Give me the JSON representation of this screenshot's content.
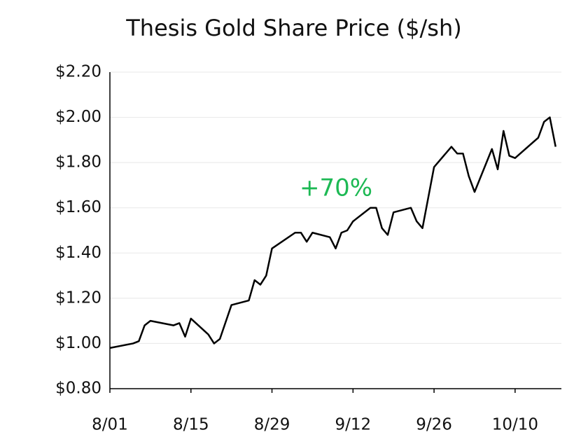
{
  "chart_data": {
    "type": "line",
    "title": "Thesis Gold Share Price ($/sh)",
    "annotation": "+70%",
    "annotation_color": "#1db954",
    "x": [
      "8/01",
      "8/05",
      "8/06",
      "8/07",
      "8/08",
      "8/12",
      "8/13",
      "8/14",
      "8/15",
      "8/18",
      "8/19",
      "8/20",
      "8/22",
      "8/25",
      "8/26",
      "8/27",
      "8/28",
      "8/29",
      "9/02",
      "9/03",
      "9/04",
      "9/05",
      "9/08",
      "9/09",
      "9/10",
      "9/11",
      "9/12",
      "9/15",
      "9/16",
      "9/17",
      "9/18",
      "9/19",
      "9/22",
      "9/23",
      "9/24",
      "9/26",
      "9/29",
      "9/30",
      "10/01",
      "10/02",
      "10/03",
      "10/06",
      "10/07",
      "10/08",
      "10/09",
      "10/10",
      "10/14",
      "10/15",
      "10/16",
      "10/17"
    ],
    "series": [
      {
        "name": "Share price",
        "color": "#000000",
        "values": [
          0.98,
          1.0,
          1.01,
          1.08,
          1.1,
          1.08,
          1.09,
          1.03,
          1.11,
          1.04,
          1.0,
          1.02,
          1.17,
          1.19,
          1.28,
          1.26,
          1.3,
          1.42,
          1.49,
          1.49,
          1.45,
          1.49,
          1.47,
          1.42,
          1.49,
          1.5,
          1.54,
          1.6,
          1.6,
          1.51,
          1.48,
          1.58,
          1.6,
          1.54,
          1.51,
          1.78,
          1.87,
          1.84,
          1.84,
          1.74,
          1.67,
          1.86,
          1.77,
          1.94,
          1.83,
          1.82,
          1.91,
          1.98,
          2.0,
          1.87
        ]
      }
    ],
    "xlim": [
      "8/01",
      "10/18"
    ],
    "xticks": [
      "8/01",
      "8/15",
      "8/29",
      "9/12",
      "9/26",
      "10/10"
    ],
    "ylim": [
      0.8,
      2.2
    ],
    "yticks": [
      {
        "value": 0.8,
        "label": "$0.80"
      },
      {
        "value": 1.0,
        "label": "$1.00"
      },
      {
        "value": 1.2,
        "label": "$1.20"
      },
      {
        "value": 1.4,
        "label": "$1.40"
      },
      {
        "value": 1.6,
        "label": "$1.60"
      },
      {
        "value": 1.8,
        "label": "$1.80"
      },
      {
        "value": 2.0,
        "label": "$2.00"
      },
      {
        "value": 2.2,
        "label": "$2.20"
      }
    ],
    "grid": true
  }
}
